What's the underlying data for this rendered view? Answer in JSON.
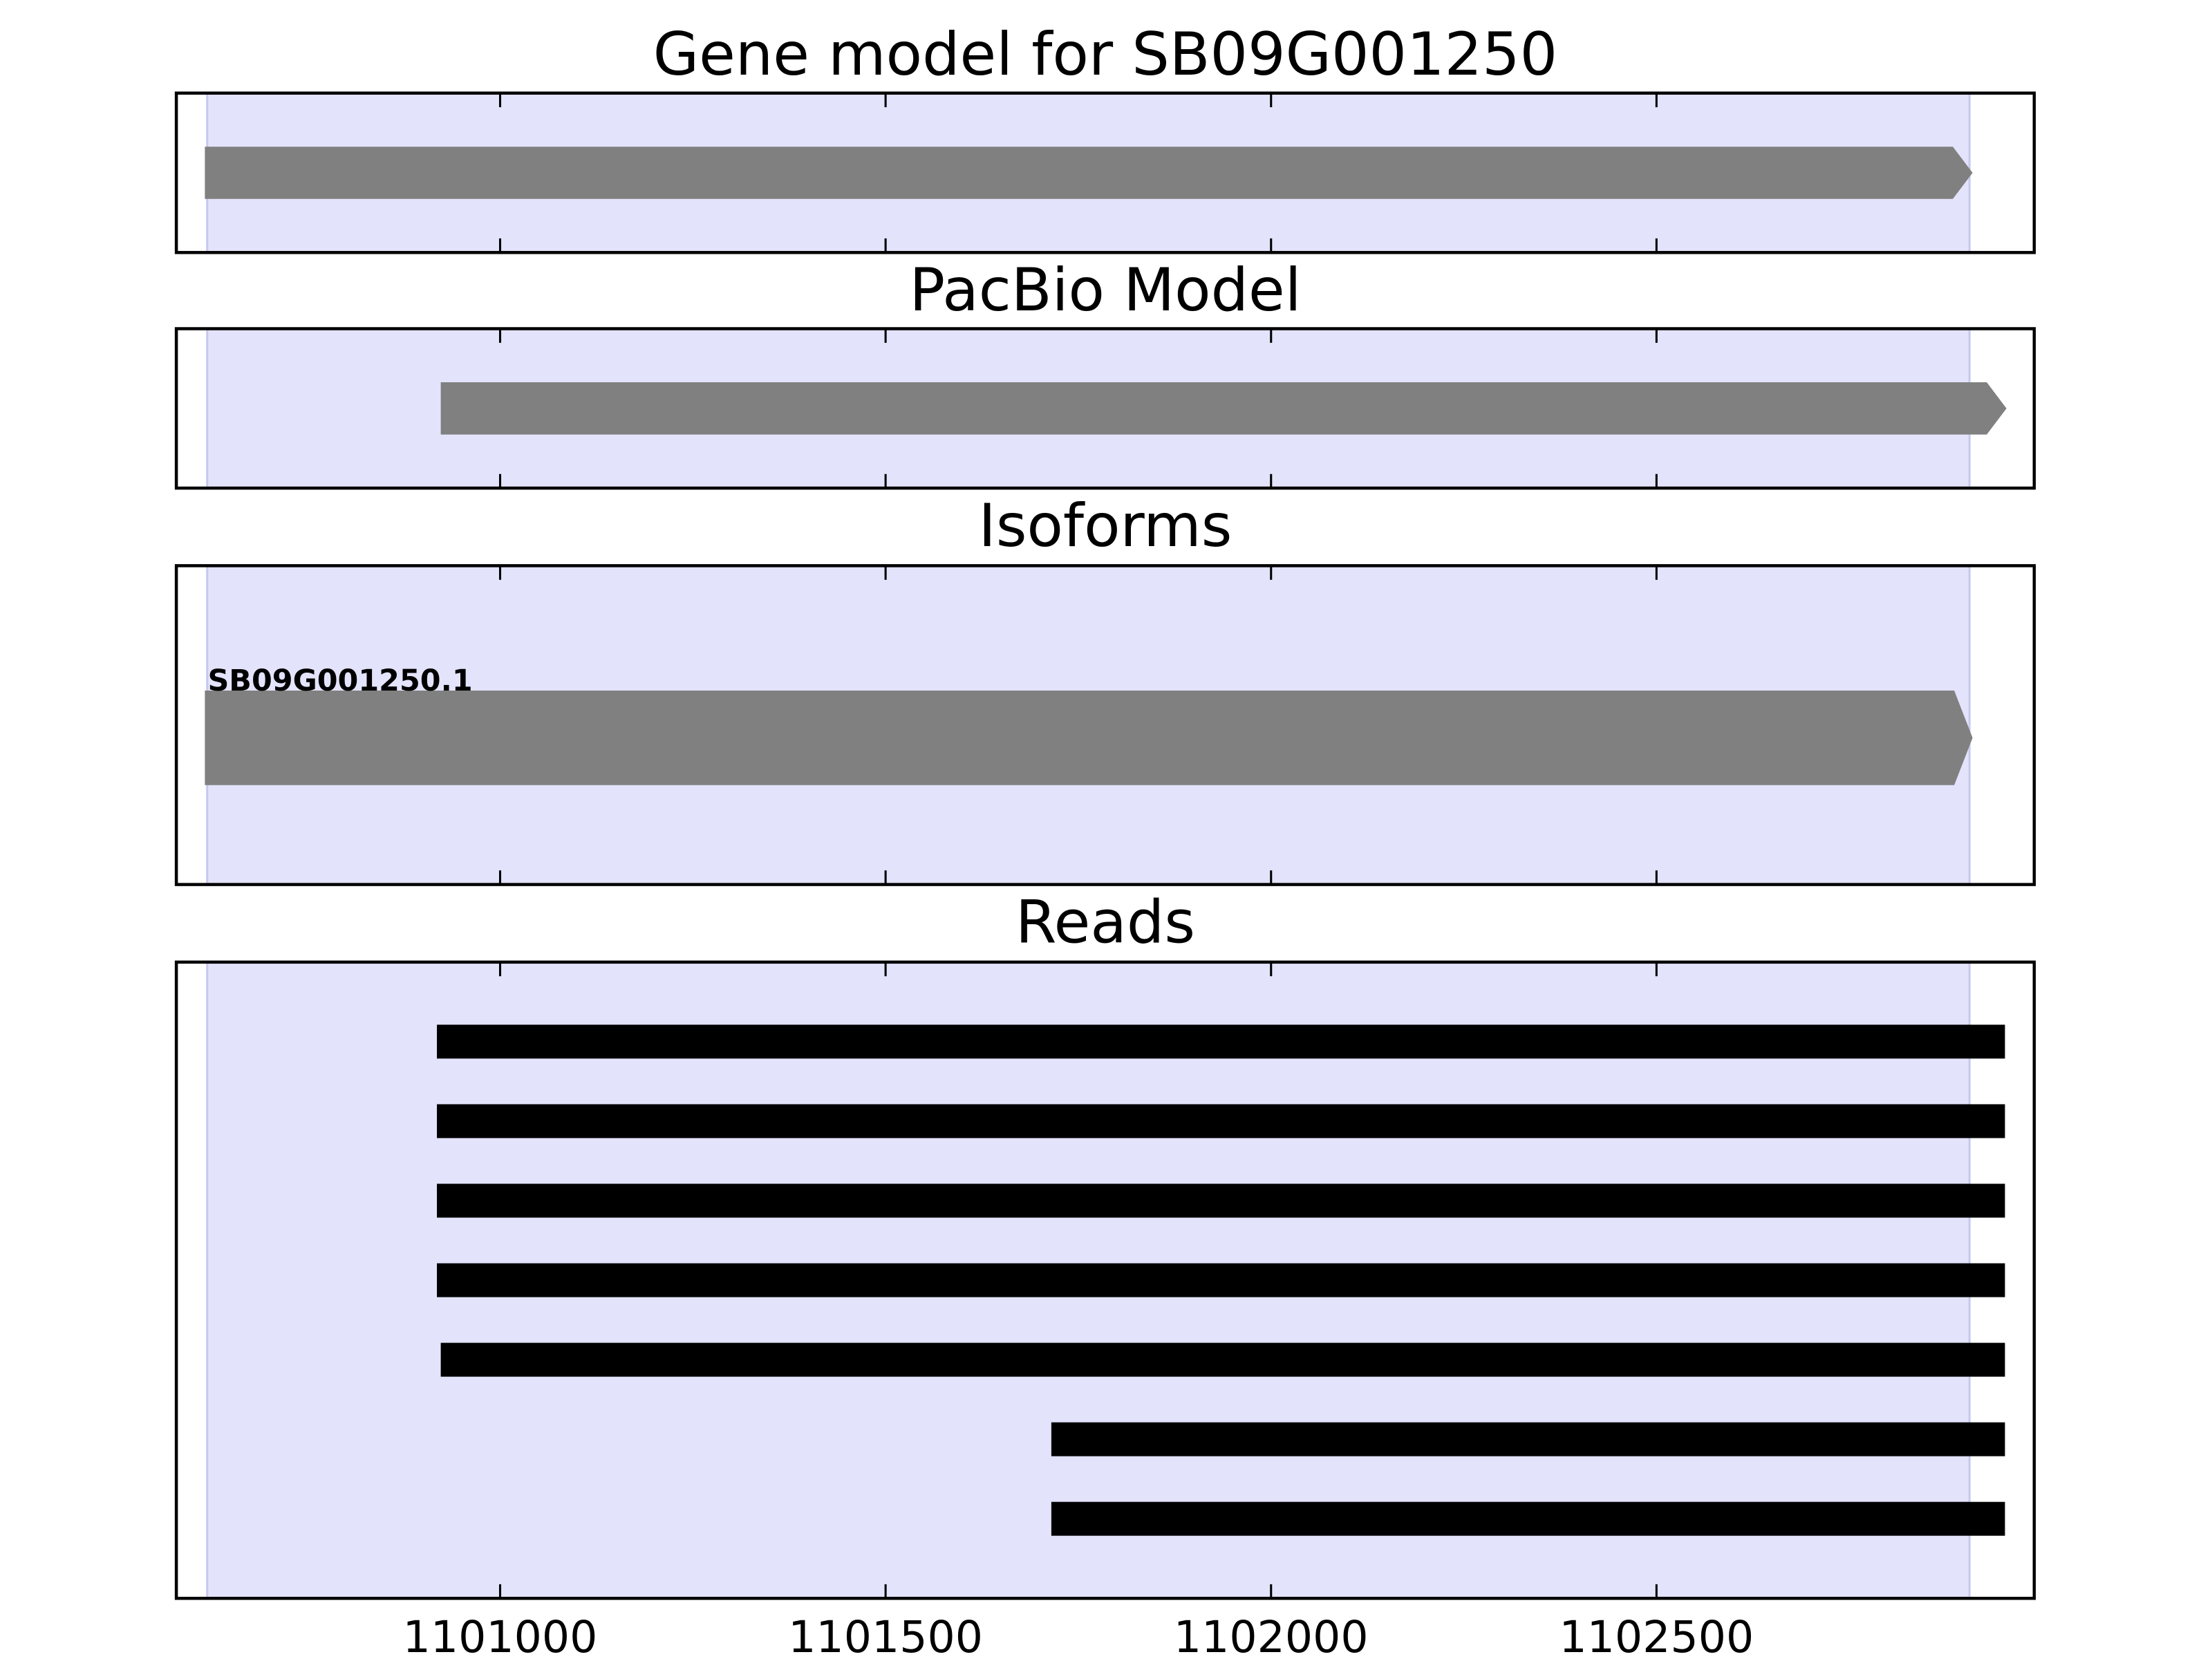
{
  "chart_data": [
    {
      "type": "range",
      "title": "Gene model for SB09G001250",
      "xlim": [
        1100580,
        1102990
      ],
      "xticks": [
        1101000,
        1101500,
        1102000,
        1102500
      ],
      "highlight": [
        1100620,
        1102906
      ],
      "highlight_color": "#e3e3fc",
      "strand": "+",
      "segments": [
        {
          "start": 1100617,
          "end": 1102910,
          "color": "#808080"
        }
      ]
    },
    {
      "type": "range",
      "title": "PacBio Model",
      "xlim": [
        1100580,
        1102990
      ],
      "xticks": [
        1101000,
        1101500,
        1102000,
        1102500
      ],
      "highlight": [
        1100620,
        1102906
      ],
      "highlight_color": "#e3e3fc",
      "strand": "+",
      "segments": [
        {
          "start": 1100923,
          "end": 1102954,
          "color": "#808080"
        }
      ]
    },
    {
      "type": "range",
      "title": "Isoforms",
      "xlim": [
        1100580,
        1102990
      ],
      "xticks": [
        1101000,
        1101500,
        1102000,
        1102500
      ],
      "highlight": [
        1100620,
        1102906
      ],
      "highlight_color": "#e3e3fc",
      "strand": "+",
      "segments": [
        {
          "start": 1100617,
          "end": 1102910,
          "color": "#808080",
          "label": "SB09G001250.1"
        }
      ]
    },
    {
      "type": "range",
      "title": "Reads",
      "xlim": [
        1100580,
        1102990
      ],
      "xticks": [
        1101000,
        1101500,
        1102000,
        1102500
      ],
      "highlight": [
        1100620,
        1102906
      ],
      "highlight_color": "#e3e3fc",
      "show_tick_labels": true,
      "segments": [
        {
          "start": 1100918,
          "end": 1102952,
          "color": "#000000"
        },
        {
          "start": 1100918,
          "end": 1102952,
          "color": "#000000"
        },
        {
          "start": 1100918,
          "end": 1102952,
          "color": "#000000"
        },
        {
          "start": 1100918,
          "end": 1102952,
          "color": "#000000"
        },
        {
          "start": 1100923,
          "end": 1102952,
          "color": "#000000"
        },
        {
          "start": 1101715,
          "end": 1102952,
          "color": "#000000"
        },
        {
          "start": 1101715,
          "end": 1102952,
          "color": "#000000"
        }
      ]
    }
  ]
}
